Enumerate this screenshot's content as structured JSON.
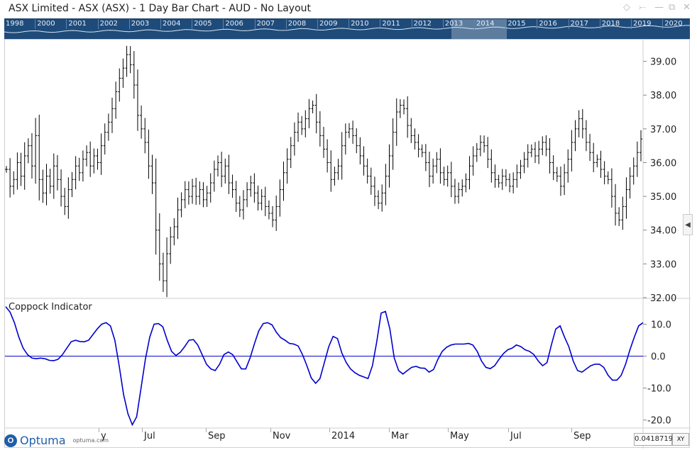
{
  "window": {
    "title": "ASX Limited - ASX (ASX) - 1 Day Bar Chart - AUD - No Layout",
    "controls": [
      "pin-icon",
      "minimize-icon",
      "restore-icon",
      "close-icon"
    ]
  },
  "timeline": {
    "years": [
      "1998",
      "2000",
      "2001",
      "2002",
      "2003",
      "2004",
      "2005",
      "2006",
      "2007",
      "2008",
      "2009",
      "2010",
      "2011",
      "2012",
      "2013",
      "2014",
      "2015",
      "2016",
      "2017",
      "2018",
      "2019",
      "2020"
    ],
    "selected_range": [
      "2013",
      "2014"
    ]
  },
  "price_pane": {
    "y_ticks": [
      "39.00",
      "38.00",
      "37.00",
      "36.00",
      "35.00",
      "34.00",
      "33.00",
      "32.00"
    ]
  },
  "indicator_pane": {
    "label": "Coppock Indicator",
    "y_ticks": [
      "10.0",
      "0.0",
      "-10.0",
      "-20.0"
    ]
  },
  "x_axis": {
    "labels": [
      "y",
      "Jul",
      "Sep",
      "Nov",
      "2014",
      "Mar",
      "May",
      "Jul",
      "Sep"
    ]
  },
  "cursor": {
    "value": "0.0418719",
    "mode": "XY"
  },
  "logo": {
    "name": "Optuma",
    "url": "optuma.com"
  },
  "colors": {
    "bars": "#000000",
    "indicator": "#0000cc",
    "timeline_bg": "#1f4b7a"
  },
  "chart_data": [
    {
      "type": "bar",
      "ylim": [
        32,
        39.6
      ],
      "y_ticks": [
        39,
        38,
        37,
        36,
        35,
        34,
        33,
        32
      ],
      "series": [
        {
          "values": [
            35.8,
            35.3,
            35.5,
            36.0,
            35.6,
            36.2,
            36.5,
            35.9,
            36.8,
            35.5,
            35.1,
            35.6,
            35.3,
            35.9,
            35.5,
            35.0,
            34.7,
            35.2,
            35.5,
            35.9,
            35.7,
            36.1,
            36.3,
            35.9,
            36.2,
            36.0,
            36.5,
            36.9,
            37.2,
            37.6,
            38.1,
            38.5,
            38.8,
            39.2,
            38.9,
            38.3,
            37.4,
            37.0,
            36.6,
            35.9,
            35.4,
            34.0,
            33.0,
            32.5,
            33.3,
            33.8,
            34.1,
            34.6,
            34.9,
            35.2,
            35.0,
            35.3,
            35.0,
            35.2,
            34.9,
            35.1,
            35.4,
            35.8,
            36.0,
            35.6,
            35.9,
            35.4,
            35.2,
            34.8,
            34.6,
            34.9,
            35.2,
            35.4,
            35.1,
            34.8,
            35.0,
            34.7,
            34.5,
            34.3,
            34.7,
            35.2,
            35.7,
            36.1,
            36.5,
            36.9,
            37.2,
            37.0,
            37.3,
            37.6,
            37.7,
            37.2,
            36.8,
            36.4,
            36.0,
            35.5,
            35.7,
            35.9,
            36.5,
            36.9,
            37.0,
            36.8,
            36.5,
            36.2,
            35.9,
            35.6,
            35.3,
            35.0,
            34.8,
            35.1,
            35.6,
            36.2,
            36.9,
            37.5,
            37.7,
            37.6,
            37.1,
            36.8,
            36.6,
            36.4,
            36.3,
            36.0,
            35.6,
            35.9,
            36.1,
            35.7,
            35.5,
            35.7,
            35.3,
            35.0,
            35.2,
            35.3,
            35.5,
            35.9,
            36.2,
            36.4,
            36.6,
            36.5,
            36.1,
            35.7,
            35.5,
            35.4,
            35.6,
            35.5,
            35.3,
            35.5,
            35.7,
            35.9,
            36.1,
            36.3,
            36.4,
            36.2,
            36.4,
            36.6,
            36.4,
            36.0,
            35.7,
            35.6,
            35.3,
            35.7,
            36.1,
            36.6,
            37.0,
            37.3,
            37.0,
            36.6,
            36.3,
            36.0,
            36.1,
            35.8,
            35.6,
            35.5,
            35.0,
            34.5,
            34.3,
            34.7,
            35.2,
            35.6,
            35.9,
            36.3,
            36.7
          ]
        }
      ]
    },
    {
      "type": "line",
      "title": "Coppock Indicator",
      "ylim": [
        -22.5,
        17
      ],
      "y_ticks": [
        10,
        0,
        -10,
        -20
      ],
      "series": [
        {
          "values": [
            15.5,
            13.8,
            10.5,
            6.0,
            2.5,
            0.5,
            -0.6,
            -0.8,
            -0.6,
            -0.8,
            -1.3,
            -1.4,
            -1.0,
            0.5,
            2.5,
            4.5,
            5.0,
            4.6,
            4.5,
            5.0,
            6.8,
            8.6,
            10.0,
            10.5,
            9.5,
            5.0,
            -3.0,
            -12.0,
            -18.0,
            -21.5,
            -19.0,
            -10.0,
            -1.0,
            6.0,
            10.0,
            10.2,
            9.2,
            5.0,
            1.5,
            0.2,
            1.2,
            3.0,
            5.0,
            5.2,
            3.5,
            0.5,
            -2.5,
            -4.0,
            -4.5,
            -2.5,
            0.5,
            1.3,
            0.5,
            -1.8,
            -4.0,
            -4.0,
            -0.5,
            4.0,
            8.0,
            10.2,
            10.5,
            9.8,
            7.5,
            5.8,
            5.0,
            4.0,
            3.8,
            3.2,
            0.5,
            -3.0,
            -6.8,
            -8.5,
            -7.0,
            -2.0,
            3.0,
            6.2,
            5.5,
            1.0,
            -2.0,
            -4.0,
            -5.2,
            -6.0,
            -6.5,
            -7.0,
            -3.0,
            4.5,
            13.5,
            14.0,
            8.5,
            -0.5,
            -4.5,
            -5.6,
            -4.5,
            -3.5,
            -3.2,
            -3.7,
            -3.8,
            -5.0,
            -4.2,
            -1.0,
            1.5,
            2.8,
            3.5,
            3.8,
            3.8,
            3.8,
            4.0,
            3.5,
            1.5,
            -1.5,
            -3.5,
            -3.9,
            -3.0,
            -1.0,
            0.8,
            2.0,
            2.5,
            3.5,
            3.0,
            2.0,
            1.5,
            0.5,
            -1.5,
            -3.0,
            -2.0,
            3.5,
            8.5,
            9.5,
            6.0,
            3.0,
            -1.5,
            -4.5,
            -5.0,
            -4.0,
            -3.0,
            -2.5,
            -2.5,
            -3.5,
            -6.0,
            -7.5,
            -7.5,
            -6.0,
            -2.5,
            2.0,
            6.0,
            9.5,
            10.5
          ]
        }
      ]
    }
  ]
}
